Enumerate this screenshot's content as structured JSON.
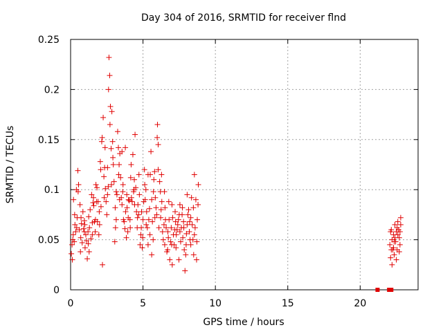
{
  "chart_data": {
    "type": "scatter",
    "title": "Day 304 of 2016, SRMTID for receiver flnd",
    "xlabel": "GPS time / hours",
    "ylabel": "SRMTID / TECUs",
    "xlim": [
      0,
      24
    ],
    "ylim": [
      0,
      0.25
    ],
    "xticks": [
      0,
      5,
      10,
      15,
      20
    ],
    "yticks": [
      0,
      0.05,
      0.1,
      0.15,
      0.2,
      0.25
    ],
    "xtick_labels": [
      "0",
      "5",
      "10",
      "15",
      "20"
    ],
    "ytick_labels": [
      "0",
      "0.05",
      "0.1",
      "0.15",
      "0.2",
      "0.25"
    ],
    "grid": true,
    "legend": "none",
    "marker": "+",
    "color": "#e00000",
    "series": [
      {
        "points": [
          [
            0.05,
            0.036
          ],
          [
            0.1,
            0.045
          ],
          [
            0.15,
            0.05
          ],
          [
            0.2,
            0.09
          ],
          [
            0.25,
            0.048
          ],
          [
            0.3,
            0.065
          ],
          [
            0.35,
            0.058
          ],
          [
            0.4,
            0.1
          ],
          [
            0.45,
            0.072
          ],
          [
            0.5,
            0.119
          ],
          [
            0.55,
            0.105
          ],
          [
            0.6,
            0.06
          ],
          [
            0.65,
            0.085
          ],
          [
            0.7,
            0.052
          ],
          [
            0.75,
            0.066
          ],
          [
            0.8,
            0.047
          ],
          [
            0.85,
            0.078
          ],
          [
            0.9,
            0.061
          ],
          [
            0.95,
            0.069
          ],
          [
            1.0,
            0.042
          ],
          [
            1.05,
            0.055
          ],
          [
            1.1,
            0.049
          ],
          [
            1.15,
            0.031
          ],
          [
            1.2,
            0.058
          ],
          [
            1.25,
            0.073
          ],
          [
            1.3,
            0.062
          ],
          [
            1.35,
            0.08
          ],
          [
            1.4,
            0.051
          ],
          [
            1.45,
            0.095
          ],
          [
            1.5,
            0.067
          ],
          [
            1.55,
            0.087
          ],
          [
            1.6,
            0.084
          ],
          [
            1.65,
            0.068
          ],
          [
            1.7,
            0.058
          ],
          [
            1.75,
            0.105
          ],
          [
            1.8,
            0.088
          ],
          [
            1.85,
            0.068
          ],
          [
            1.9,
            0.088
          ],
          [
            1.95,
            0.055
          ],
          [
            2.0,
            0.065
          ],
          [
            2.05,
            0.128
          ],
          [
            2.1,
            0.083
          ],
          [
            2.15,
            0.148
          ],
          [
            2.2,
            0.025
          ],
          [
            2.25,
            0.172
          ],
          [
            2.3,
            0.113
          ],
          [
            2.35,
            0.122
          ],
          [
            2.4,
            0.101
          ],
          [
            2.45,
            0.088
          ],
          [
            2.5,
            0.075
          ],
          [
            2.55,
            0.095
          ],
          [
            2.6,
            0.103
          ],
          [
            2.65,
            0.232
          ],
          [
            2.7,
            0.214
          ],
          [
            2.75,
            0.183
          ],
          [
            2.8,
            0.141
          ],
          [
            2.85,
            0.178
          ],
          [
            2.9,
            0.148
          ],
          [
            2.95,
            0.125
          ],
          [
            3.0,
            0.108
          ],
          [
            3.05,
            0.048
          ],
          [
            3.1,
            0.062
          ],
          [
            3.15,
            0.07
          ],
          [
            3.2,
            0.095
          ],
          [
            3.25,
            0.158
          ],
          [
            3.3,
            0.142
          ],
          [
            3.35,
            0.125
          ],
          [
            3.4,
            0.136
          ],
          [
            3.45,
            0.112
          ],
          [
            3.5,
            0.092
          ],
          [
            3.55,
            0.085
          ],
          [
            3.6,
            0.098
          ],
          [
            3.65,
            0.07
          ],
          [
            3.7,
            0.068
          ],
          [
            3.75,
            0.061
          ],
          [
            3.8,
            0.078
          ],
          [
            3.85,
            0.052
          ],
          [
            3.9,
            0.082
          ],
          [
            3.95,
            0.058
          ],
          [
            4.0,
            0.09
          ],
          [
            4.05,
            0.089
          ],
          [
            4.1,
            0.07
          ],
          [
            4.15,
            0.112
          ],
          [
            4.2,
            0.092
          ],
          [
            4.25,
            0.088
          ],
          [
            4.3,
            0.135
          ],
          [
            4.35,
            0.098
          ],
          [
            4.4,
            0.11
          ],
          [
            4.45,
            0.155
          ],
          [
            4.5,
            0.102
          ],
          [
            4.55,
            0.078
          ],
          [
            4.6,
            0.062
          ],
          [
            4.65,
            0.085
          ],
          [
            4.7,
            0.075
          ],
          [
            4.75,
            0.095
          ],
          [
            4.8,
            0.045
          ],
          [
            4.85,
            0.055
          ],
          [
            4.9,
            0.078
          ],
          [
            4.95,
            0.042
          ],
          [
            5.0,
            0.07
          ],
          [
            5.05,
            0.088
          ],
          [
            5.1,
            0.12
          ],
          [
            5.15,
            0.09
          ],
          [
            5.2,
            0.1
          ],
          [
            5.25,
            0.078
          ],
          [
            5.3,
            0.062
          ],
          [
            5.35,
            0.115
          ],
          [
            5.4,
            0.07
          ],
          [
            5.45,
            0.081
          ],
          [
            5.5,
            0.115
          ],
          [
            5.55,
            0.138
          ],
          [
            5.6,
            0.09
          ],
          [
            5.65,
            0.068
          ],
          [
            5.7,
            0.05
          ],
          [
            5.75,
            0.11
          ],
          [
            5.8,
            0.118
          ],
          [
            5.85,
            0.092
          ],
          [
            5.9,
            0.082
          ],
          [
            5.95,
            0.075
          ],
          [
            6.0,
            0.165
          ],
          [
            6.05,
            0.12
          ],
          [
            6.1,
            0.062
          ],
          [
            6.15,
            0.108
          ],
          [
            6.2,
            0.098
          ],
          [
            6.25,
            0.08
          ],
          [
            6.3,
            0.088
          ],
          [
            6.35,
            0.058
          ],
          [
            6.4,
            0.05
          ],
          [
            6.45,
            0.065
          ],
          [
            6.5,
            0.045
          ],
          [
            6.55,
            0.07
          ],
          [
            6.6,
            0.062
          ],
          [
            6.65,
            0.038
          ],
          [
            6.7,
            0.04
          ],
          [
            6.75,
            0.052
          ],
          [
            6.8,
            0.07
          ],
          [
            6.85,
            0.03
          ],
          [
            6.9,
            0.048
          ],
          [
            6.95,
            0.062
          ],
          [
            7.0,
            0.085
          ],
          [
            7.05,
            0.072
          ],
          [
            7.1,
            0.055
          ],
          [
            7.15,
            0.045
          ],
          [
            7.2,
            0.06
          ],
          [
            7.25,
            0.068
          ],
          [
            7.3,
            0.055
          ],
          [
            7.35,
            0.06
          ],
          [
            7.4,
            0.065
          ],
          [
            7.45,
            0.07
          ],
          [
            7.5,
            0.075
          ],
          [
            7.55,
            0.058
          ],
          [
            7.6,
            0.048
          ],
          [
            7.65,
            0.062
          ],
          [
            7.7,
            0.075
          ],
          [
            7.75,
            0.052
          ],
          [
            7.8,
            0.068
          ],
          [
            7.85,
            0.04
          ],
          [
            7.9,
            0.019
          ],
          [
            7.95,
            0.035
          ],
          [
            8.0,
            0.056
          ],
          [
            8.05,
            0.065
          ],
          [
            8.1,
            0.075
          ],
          [
            8.15,
            0.08
          ],
          [
            8.2,
            0.058
          ],
          [
            8.25,
            0.05
          ],
          [
            8.3,
            0.045
          ],
          [
            8.35,
            0.092
          ],
          [
            8.4,
            0.065
          ],
          [
            8.45,
            0.05
          ],
          [
            8.5,
            0.035
          ],
          [
            8.55,
            0.115
          ],
          [
            8.6,
            0.062
          ],
          [
            8.65,
            0.09
          ],
          [
            8.7,
            0.03
          ],
          [
            8.75,
            0.07
          ],
          [
            8.8,
            0.085
          ],
          [
            0.12,
            0.03
          ],
          [
            0.28,
            0.075
          ],
          [
            0.52,
            0.098
          ],
          [
            0.68,
            0.038
          ],
          [
            0.95,
            0.058
          ],
          [
            1.22,
            0.046
          ],
          [
            1.5,
            0.055
          ],
          [
            1.72,
            0.07
          ],
          [
            1.98,
            0.078
          ],
          [
            2.18,
            0.152
          ],
          [
            2.38,
            0.142
          ],
          [
            2.55,
            0.122
          ],
          [
            2.72,
            0.165
          ],
          [
            2.92,
            0.132
          ],
          [
            3.15,
            0.098
          ],
          [
            3.38,
            0.09
          ],
          [
            3.55,
            0.138
          ],
          [
            3.78,
            0.142
          ],
          [
            3.98,
            0.072
          ],
          [
            4.18,
            0.125
          ],
          [
            4.38,
            0.1
          ],
          [
            4.62,
            0.072
          ],
          [
            4.88,
            0.062
          ],
          [
            5.12,
            0.105
          ],
          [
            5.35,
            0.045
          ],
          [
            5.6,
            0.035
          ],
          [
            5.82,
            0.072
          ],
          [
            6.05,
            0.145
          ],
          [
            6.28,
            0.115
          ],
          [
            6.52,
            0.082
          ],
          [
            6.78,
            0.088
          ],
          [
            7.02,
            0.025
          ],
          [
            7.28,
            0.042
          ],
          [
            7.55,
            0.085
          ],
          [
            7.82,
            0.062
          ],
          [
            8.05,
            0.095
          ],
          [
            8.3,
            0.072
          ],
          [
            8.55,
            0.055
          ],
          [
            8.82,
            0.105
          ],
          [
            0.18,
            0.055
          ],
          [
            0.42,
            0.062
          ],
          [
            0.72,
            0.072
          ],
          [
            0.98,
            0.065
          ],
          [
            1.28,
            0.038
          ],
          [
            1.58,
            0.092
          ],
          [
            1.82,
            0.102
          ],
          [
            2.08,
            0.12
          ],
          [
            2.32,
            0.092
          ],
          [
            2.62,
            0.2
          ],
          [
            2.82,
            0.105
          ],
          [
            3.08,
            0.082
          ],
          [
            3.32,
            0.115
          ],
          [
            3.62,
            0.105
          ],
          [
            3.88,
            0.095
          ],
          [
            4.12,
            0.062
          ],
          [
            4.42,
            0.085
          ],
          [
            4.72,
            0.115
          ],
          [
            4.98,
            0.052
          ],
          [
            5.22,
            0.065
          ],
          [
            5.48,
            0.055
          ],
          [
            5.72,
            0.098
          ],
          [
            5.98,
            0.152
          ],
          [
            6.22,
            0.072
          ],
          [
            6.48,
            0.098
          ],
          [
            6.72,
            0.058
          ],
          [
            6.98,
            0.045
          ],
          [
            7.22,
            0.078
          ],
          [
            7.48,
            0.03
          ],
          [
            7.72,
            0.082
          ],
          [
            7.98,
            0.045
          ],
          [
            8.22,
            0.068
          ],
          [
            8.48,
            0.082
          ],
          [
            8.72,
            0.048
          ]
        ]
      },
      {
        "points": [
          [
            22.05,
            0.045
          ],
          [
            22.1,
            0.032
          ],
          [
            22.15,
            0.06
          ],
          [
            22.2,
            0.05
          ],
          [
            22.25,
            0.04
          ],
          [
            22.3,
            0.055
          ],
          [
            22.35,
            0.035
          ],
          [
            22.4,
            0.065
          ],
          [
            22.45,
            0.048
          ],
          [
            22.5,
            0.058
          ],
          [
            22.55,
            0.04
          ],
          [
            22.6,
            0.055
          ],
          [
            22.65,
            0.06
          ],
          [
            22.7,
            0.052
          ],
          [
            22.75,
            0.045
          ],
          [
            22.8,
            0.072
          ],
          [
            22.1,
            0.058
          ],
          [
            22.2,
            0.025
          ],
          [
            22.3,
            0.042
          ],
          [
            22.4,
            0.052
          ],
          [
            22.5,
            0.03
          ],
          [
            22.6,
            0.068
          ],
          [
            22.7,
            0.038
          ],
          [
            22.8,
            0.065
          ],
          [
            22.15,
            0.04
          ],
          [
            22.35,
            0.048
          ],
          [
            22.55,
            0.062
          ],
          [
            22.75,
            0.058
          ]
        ]
      },
      {
        "points": [
          [
            21.2,
            0
          ],
          [
            22.0,
            0
          ],
          [
            22.15,
            0
          ]
        ]
      }
    ]
  }
}
